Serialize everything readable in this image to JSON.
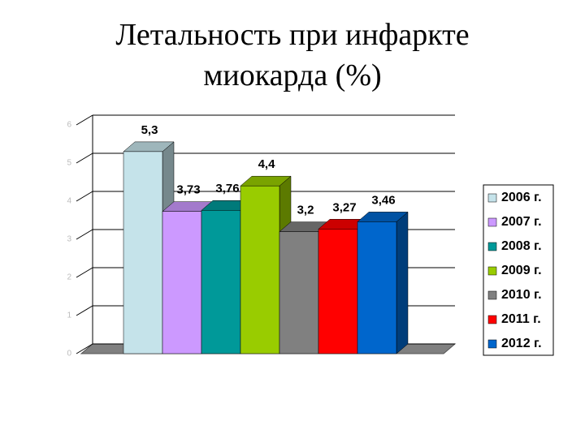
{
  "chart_data": {
    "type": "bar3d",
    "title": "Летальность при инфаркте миокарда (%)",
    "categories": [
      null
    ],
    "series": [
      {
        "name": "2006 г.",
        "color": "#c5e3ea",
        "values": [
          5.3
        ],
        "value_labels": [
          "5,3"
        ]
      },
      {
        "name": "2007 г.",
        "color": "#cc99ff",
        "values": [
          3.73
        ],
        "value_labels": [
          "3,73"
        ]
      },
      {
        "name": "2008 г.",
        "color": "#009999",
        "values": [
          3.76
        ],
        "value_labels": [
          "3,76"
        ]
      },
      {
        "name": "2009 г.",
        "color": "#99cc00",
        "values": [
          4.4
        ],
        "value_labels": [
          "4,4"
        ]
      },
      {
        "name": "2010 г.",
        "color": "#808080",
        "values": [
          3.2
        ],
        "value_labels": [
          "3,2"
        ]
      },
      {
        "name": "2011 г.",
        "color": "#ff0000",
        "values": [
          3.27
        ],
        "value_labels": [
          "3,27"
        ]
      },
      {
        "name": "2012 г.",
        "color": "#0066cc",
        "values": [
          3.46
        ],
        "value_labels": [
          "3,46"
        ]
      }
    ],
    "ylim": [
      0,
      6
    ],
    "yticks": [
      0,
      1,
      2,
      3,
      4,
      5,
      6
    ],
    "grid": true,
    "legend": "right"
  }
}
